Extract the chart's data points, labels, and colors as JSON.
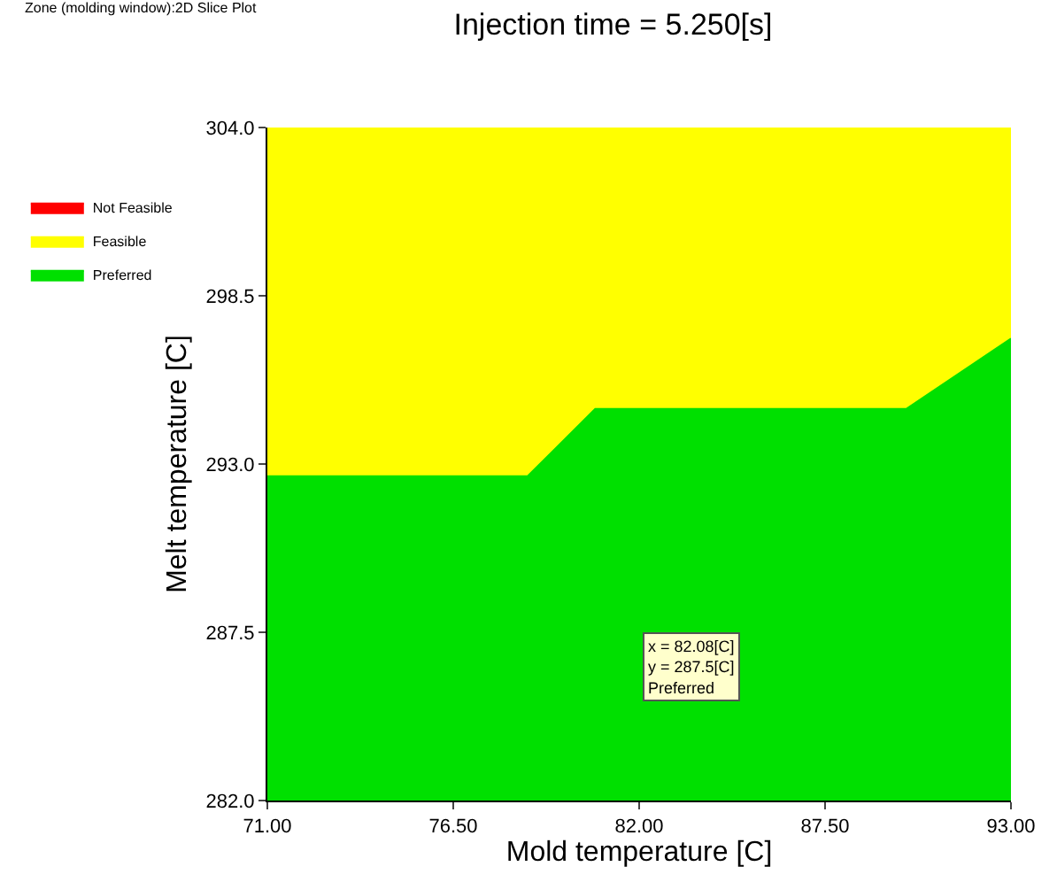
{
  "chart_data": {
    "type": "area",
    "title": "Injection time = 5.250[s]",
    "xlabel": "Mold temperature [C]",
    "ylabel": "Melt temperature [C]",
    "x": [
      71,
      78.7,
      80.7,
      89.9,
      93
    ],
    "series": [
      {
        "name": "Not Feasible",
        "color": "#ff0000",
        "values": [
          null,
          null,
          null,
          null,
          null
        ]
      },
      {
        "name": "Feasible",
        "color": "#ffff00",
        "values": [
          304,
          304,
          304,
          304,
          304
        ]
      },
      {
        "name": "Preferred",
        "color": "#00e000",
        "values": [
          292.6,
          292.6,
          294.8,
          294.8,
          297.1
        ]
      }
    ],
    "xlim": [
      71,
      93
    ],
    "ylim": [
      282,
      304
    ],
    "xticks": [
      {
        "value": 71,
        "label": "71.00"
      },
      {
        "value": 76.5,
        "label": "76.50"
      },
      {
        "value": 82,
        "label": "82.00"
      },
      {
        "value": 87.5,
        "label": "87.50"
      },
      {
        "value": 93,
        "label": "93.00"
      }
    ],
    "yticks": [
      {
        "value": 282,
        "label": "282.0"
      },
      {
        "value": 287.5,
        "label": "287.5"
      },
      {
        "value": 293,
        "label": "293.0"
      },
      {
        "value": 298.5,
        "label": "298.5"
      },
      {
        "value": 304,
        "label": "304.0"
      }
    ],
    "legend": "left",
    "annotations": [
      "Zone (molding window):2D Slice Plot",
      "x = 82.08[C]\ny = 287.5[C]\nPreferred"
    ]
  }
}
